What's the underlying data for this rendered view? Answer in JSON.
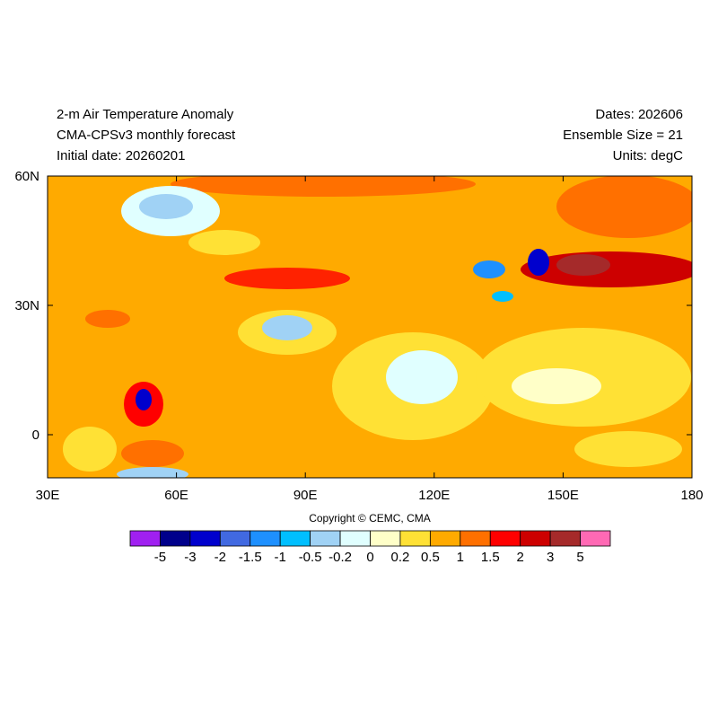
{
  "header": {
    "left": [
      "2-m Air Temperature Anomaly",
      "CMA-CPSv3 monthly forecast",
      "Initial date: 20260201"
    ],
    "right": [
      "Dates: 202606",
      "Ensemble Size = 21",
      "Units: degC"
    ]
  },
  "map": {
    "lat_ticks": [
      "60N",
      "30N",
      "0"
    ],
    "lon_ticks": [
      "30E",
      "60E",
      "90E",
      "120E",
      "150E",
      "180"
    ]
  },
  "copyright": "Copyright © CEMC, CMA",
  "colorbar": {
    "colors": [
      "#a020f0",
      "#00008b",
      "#0000cd",
      "#4169e1",
      "#1e90ff",
      "#00bfff",
      "#a0d2f5",
      "#e0ffff",
      "#ffffc8",
      "#ffe135",
      "#ffaa00",
      "#ff7000",
      "#ff0000",
      "#cd0000",
      "#a52a2a",
      "#ff69b4"
    ],
    "labels": [
      "-5",
      "-3",
      "-2",
      "-1.5",
      "-1",
      "-0.5",
      "-0.2",
      "0",
      "0.2",
      "0.5",
      "1",
      "1.5",
      "2",
      "3",
      "5"
    ]
  }
}
